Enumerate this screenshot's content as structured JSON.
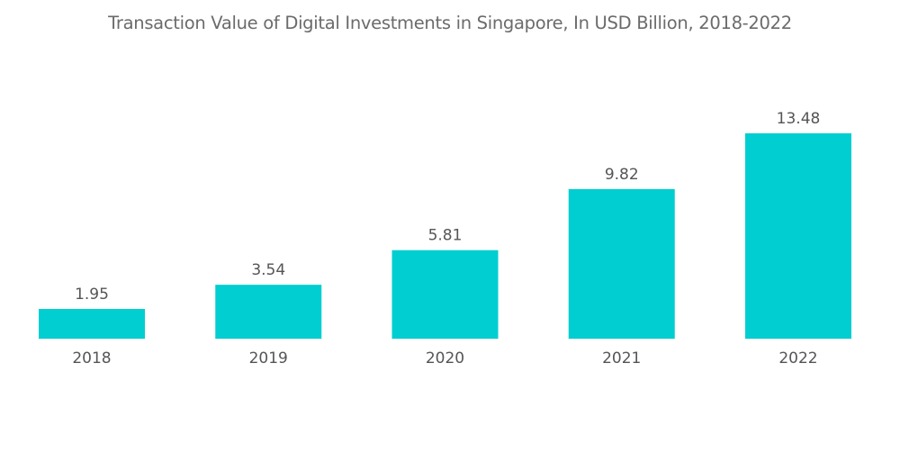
{
  "chart_data": {
    "type": "bar",
    "title": "Transaction Value of Digital Investments in Singapore, In USD Billion, 2018-2022",
    "categories": [
      "2018",
      "2019",
      "2020",
      "2021",
      "2022"
    ],
    "values": [
      1.95,
      3.54,
      5.81,
      9.82,
      13.48
    ],
    "value_labels": [
      "1.95",
      "3.54",
      "5.81",
      "9.82",
      "13.48"
    ],
    "xlabel": "",
    "ylabel": "",
    "ylim": [
      0,
      13.48
    ],
    "grid": false,
    "legend": "none",
    "bar_color": "#00ced1"
  }
}
